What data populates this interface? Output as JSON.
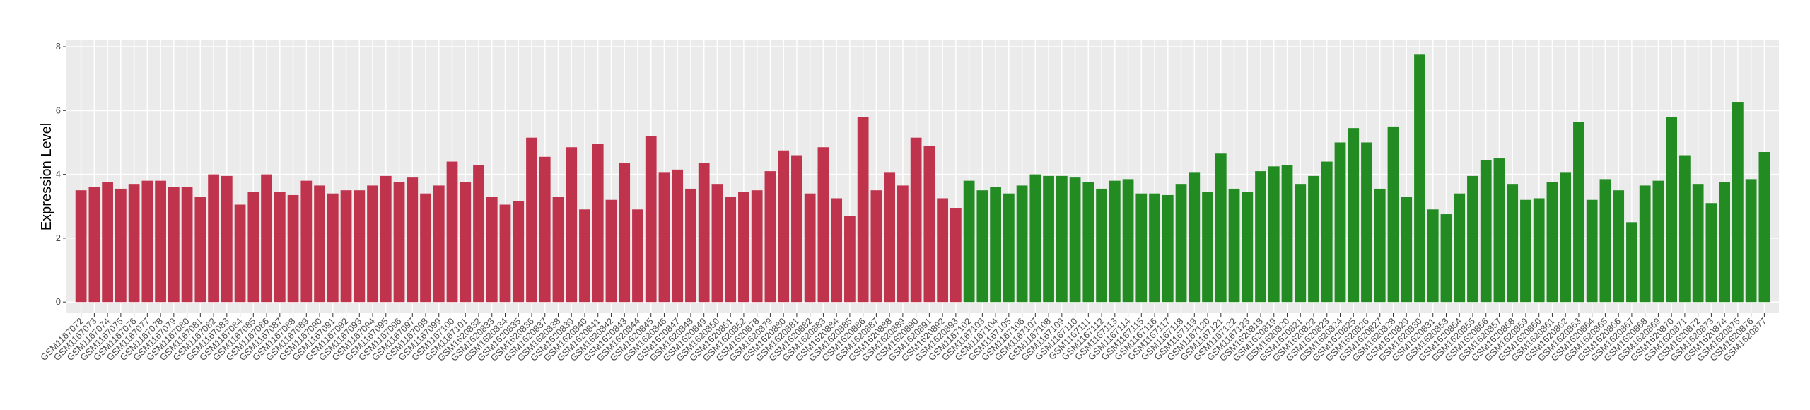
{
  "chart_data": {
    "type": "bar",
    "y_label": "Expression Level",
    "categories": [
      "GSM1167072",
      "GSM1167073",
      "GSM1167074",
      "GSM1167075",
      "GSM1167076",
      "GSM1167077",
      "GSM1167078",
      "GSM1167079",
      "GSM1167080",
      "GSM1167081",
      "GSM1167082",
      "GSM1167083",
      "GSM1167084",
      "GSM1167085",
      "GSM1167086",
      "GSM1167087",
      "GSM1167088",
      "GSM1167089",
      "GSM1167090",
      "GSM1167091",
      "GSM1167092",
      "GSM1167093",
      "GSM1167094",
      "GSM1167095",
      "GSM1167096",
      "GSM1167097",
      "GSM1167098",
      "GSM1167099",
      "GSM1167100",
      "GSM1167101",
      "GSM1620832",
      "GSM1620833",
      "GSM1620834",
      "GSM1620835",
      "GSM1620836",
      "GSM1620837",
      "GSM1620838",
      "GSM1620839",
      "GSM1620840",
      "GSM1620841",
      "GSM1620842",
      "GSM1620843",
      "GSM1620844",
      "GSM1620845",
      "GSM1620846",
      "GSM1620847",
      "GSM1620848",
      "GSM1620849",
      "GSM1620850",
      "GSM1620851",
      "GSM1620852",
      "GSM1620878",
      "GSM1620879",
      "GSM1620880",
      "GSM1620881",
      "GSM1620882",
      "GSM1620883",
      "GSM1620884",
      "GSM1620885",
      "GSM1620886",
      "GSM1620887",
      "GSM1620888",
      "GSM1620889",
      "GSM1620890",
      "GSM1620891",
      "GSM1620892",
      "GSM1620893",
      "GSM1167102",
      "GSM1167103",
      "GSM1167104",
      "GSM1167105",
      "GSM1167106",
      "GSM1167107",
      "GSM1167108",
      "GSM1167109",
      "GSM1167110",
      "GSM1167111",
      "GSM1167112",
      "GSM1167113",
      "GSM1167114",
      "GSM1167115",
      "GSM1167116",
      "GSM1167117",
      "GSM1167118",
      "GSM1167119",
      "GSM1167120",
      "GSM1167121",
      "GSM1167122",
      "GSM1167123",
      "GSM1620818",
      "GSM1620819",
      "GSM1620820",
      "GSM1620821",
      "GSM1620822",
      "GSM1620823",
      "GSM1620824",
      "GSM1620825",
      "GSM1620826",
      "GSM1620827",
      "GSM1620828",
      "GSM1620829",
      "GSM1620830",
      "GSM1620831",
      "GSM1620853",
      "GSM1620854",
      "GSM1620855",
      "GSM1620856",
      "GSM1620857",
      "GSM1620858",
      "GSM1620859",
      "GSM1620860",
      "GSM1620861",
      "GSM1620862",
      "GSM1620863",
      "GSM1620864",
      "GSM1620865",
      "GSM1620866",
      "GSM1620867",
      "GSM1620868",
      "GSM1620869",
      "GSM1620870",
      "GSM1620871",
      "GSM1620872",
      "GSM1620873",
      "GSM1620874",
      "GSM1620875",
      "GSM1620876",
      "GSM1620877"
    ],
    "series": [
      {
        "color": "#c0334d",
        "values": [
          3.5,
          3.6,
          3.75,
          3.55,
          3.7,
          3.8,
          3.8,
          3.6,
          3.6,
          3.3,
          4.0,
          3.95,
          3.05,
          3.45,
          4.0,
          3.45,
          3.35,
          3.8,
          3.65,
          3.4,
          3.5,
          3.5,
          3.65,
          3.95,
          3.75,
          3.9,
          3.4,
          3.65,
          4.4,
          3.75,
          4.3,
          3.3,
          3.05,
          3.15,
          5.15,
          4.55,
          3.3,
          4.85,
          2.9,
          4.95,
          3.2,
          4.35,
          2.9,
          5.2,
          4.05,
          4.15,
          3.55,
          4.35,
          3.7,
          3.3,
          3.45,
          3.5,
          4.1,
          4.75,
          4.6,
          3.4,
          4.85,
          3.25,
          2.7,
          5.8,
          3.5,
          4.05,
          3.65,
          5.15,
          4.9,
          3.25,
          2.95,
          null,
          null,
          null,
          null,
          null,
          null,
          null,
          null,
          null,
          null,
          null,
          null,
          null,
          null,
          null,
          null,
          null,
          null,
          null,
          null,
          null,
          null,
          null,
          null,
          null,
          null,
          null,
          null,
          null,
          null,
          null,
          null,
          null,
          null,
          null,
          null,
          null,
          null,
          null,
          null,
          null,
          null,
          null,
          null,
          null,
          null,
          null,
          null,
          null,
          null,
          null,
          null,
          null,
          null,
          null,
          null,
          null,
          null,
          null,
          null,
          null
        ]
      },
      {
        "color": "#228b22",
        "values": [
          null,
          null,
          null,
          null,
          null,
          null,
          null,
          null,
          null,
          null,
          null,
          null,
          null,
          null,
          null,
          null,
          null,
          null,
          null,
          null,
          null,
          null,
          null,
          null,
          null,
          null,
          null,
          null,
          null,
          null,
          null,
          null,
          null,
          null,
          null,
          null,
          null,
          null,
          null,
          null,
          null,
          null,
          null,
          null,
          null,
          null,
          null,
          null,
          null,
          null,
          null,
          null,
          null,
          null,
          null,
          null,
          null,
          null,
          null,
          null,
          null,
          null,
          null,
          null,
          null,
          null,
          null,
          3.8,
          3.5,
          3.6,
          3.4,
          3.65,
          4.0,
          3.95,
          3.95,
          3.9,
          3.75,
          3.55,
          3.8,
          3.85,
          3.4,
          3.4,
          3.35,
          3.7,
          4.05,
          3.45,
          4.65,
          3.55,
          3.45,
          4.1,
          4.25,
          4.3,
          3.7,
          3.95,
          4.4,
          5.0,
          5.45,
          5.0,
          3.55,
          5.5,
          3.3,
          7.75,
          2.9,
          2.75,
          3.4,
          3.95,
          4.45,
          4.5,
          3.7,
          3.2,
          3.25,
          3.75,
          4.05,
          5.65,
          3.2,
          3.85,
          3.5,
          2.5,
          3.65,
          3.8,
          5.8,
          4.6,
          3.7,
          3.1,
          3.75,
          6.25,
          3.85,
          4.7
        ]
      }
    ],
    "ylim": [
      -0.35,
      8.2
    ],
    "yticks": [
      0,
      2,
      4,
      6,
      8
    ],
    "grid": true
  }
}
